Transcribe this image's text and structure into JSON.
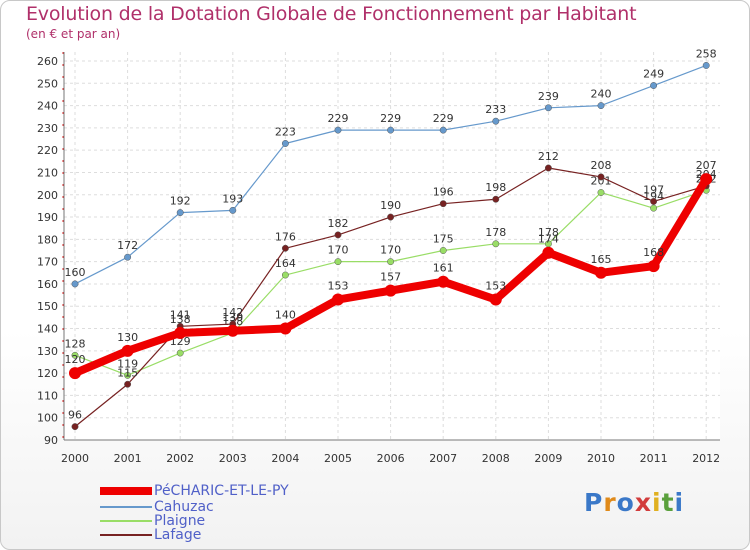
{
  "chart_data": {
    "type": "line",
    "title": "Evolution de la Dotation Globale de Fonctionnement par Habitant",
    "subtitle": "(en € et par an)",
    "xlabel": "",
    "ylabel": "",
    "ylim": [
      90,
      260
    ],
    "ytick_step": 10,
    "grid": true,
    "legend_position": "bottom-left",
    "categories": [
      "2000",
      "2001",
      "2002",
      "2003",
      "2004",
      "2005",
      "2006",
      "2007",
      "2008",
      "2009",
      "2010",
      "2011",
      "2012"
    ],
    "series": [
      {
        "name": "PéCHARIC-ET-LE-PY",
        "color": "#ee0000",
        "values": [
          120,
          130,
          138,
          139,
          140,
          153,
          157,
          161,
          153,
          174,
          165,
          168,
          207
        ]
      },
      {
        "name": "Cahuzac",
        "color": "#6699cc",
        "values": [
          160,
          172,
          192,
          193,
          223,
          229,
          229,
          229,
          233,
          239,
          240,
          249,
          258
        ]
      },
      {
        "name": "Plaigne",
        "color": "#99dd66",
        "values": [
          128,
          119,
          129,
          138,
          164,
          170,
          170,
          175,
          178,
          178,
          201,
          194,
          202
        ]
      },
      {
        "name": "Lafage",
        "color": "#772222",
        "values": [
          96,
          115,
          141,
          142,
          176,
          182,
          190,
          196,
          198,
          212,
          208,
          197,
          204
        ]
      }
    ]
  },
  "legend": {
    "items": [
      {
        "label": "PéCHARIC-ET-LE-PY",
        "color": "#ee0000"
      },
      {
        "label": "Cahuzac",
        "color": "#6699cc"
      },
      {
        "label": "Plaigne",
        "color": "#99dd66"
      },
      {
        "label": "Lafage",
        "color": "#772222"
      }
    ]
  },
  "logo": {
    "text": "Proxiti"
  }
}
